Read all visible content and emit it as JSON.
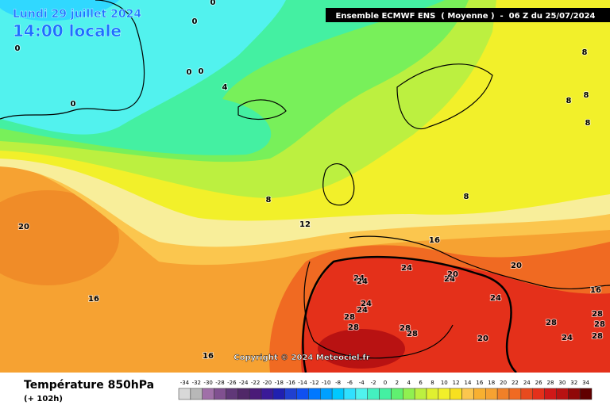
{
  "header": {
    "date": "Lundi 29 juillet 2024",
    "time": "14:00 locale",
    "run": "Ensemble ECMWF ENS  ( Moyenne )  -  06 Z du 25/07/2024"
  },
  "map": {
    "contour_labels": [
      0,
      0,
      0,
      0,
      0,
      0,
      4,
      8,
      8,
      8,
      8,
      8,
      8,
      12,
      16,
      20,
      16,
      16,
      24,
      24,
      24,
      24,
      20,
      20,
      24,
      24,
      28,
      28,
      28,
      28,
      24,
      16,
      20,
      28,
      28,
      28,
      24,
      28
    ]
  },
  "copyright": "Copyright © 2024 Meteociel.fr",
  "footer": {
    "title": "Température 850hPa",
    "lead": "(+ 102h)"
  },
  "scale": {
    "values": [
      -34,
      -32,
      -30,
      -28,
      -26,
      -24,
      -22,
      -20,
      -18,
      -16,
      -14,
      -12,
      -10,
      -8,
      -6,
      -4,
      -2,
      0,
      2,
      4,
      6,
      8,
      10,
      12,
      14,
      16,
      18,
      20,
      22,
      24,
      26,
      28,
      30,
      32,
      34
    ],
    "colors": [
      "#d8d8d8",
      "#b8b8b8",
      "#a070a8",
      "#805090",
      "#603878",
      "#502868",
      "#4a1a78",
      "#3a1a98",
      "#2020b0",
      "#2040d0",
      "#1050f0",
      "#0078ff",
      "#00a0ff",
      "#00c8ff",
      "#30e0ff",
      "#50f2ee",
      "#44f0c0",
      "#44f0a2",
      "#60f070",
      "#90f050",
      "#bcf040",
      "#e0f030",
      "#f2f02a",
      "#f8e020",
      "#fbc64e",
      "#f8b030",
      "#f6a232",
      "#f08028",
      "#f06a22",
      "#e84a1e",
      "#e4301a",
      "#d01818",
      "#b81212",
      "#900808",
      "#600000"
    ]
  }
}
